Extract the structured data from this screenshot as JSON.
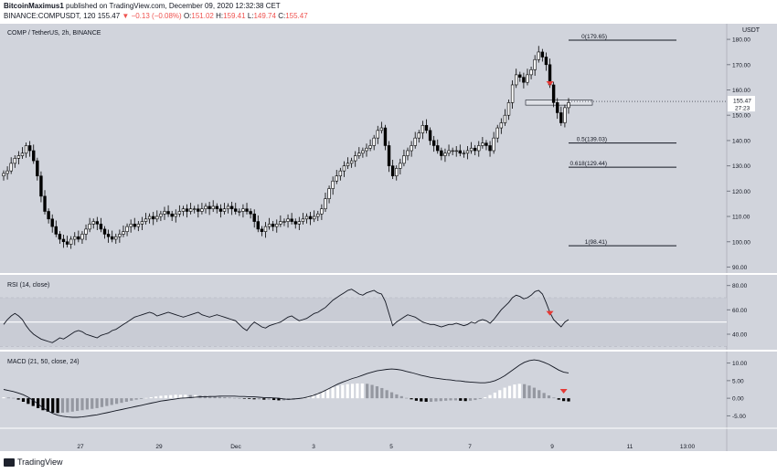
{
  "header": {
    "author": "BitcoinMaximus1",
    "published_text": "published on TradingView.com, December 09, 2020 12:32:38 CET",
    "symbol": "BINANCE:COMPUSDT, 120",
    "last": "155.47",
    "change": "−0.13 (−0.08%)",
    "o_label": "O:",
    "o_val": "151.02",
    "h_label": "H:",
    "h_val": "159.41",
    "l_label": "L:",
    "l_val": "149.74",
    "c_label": "C:",
    "c_val": "155.47"
  },
  "colors": {
    "background": "#d1d4dc",
    "panel_bg": "#ffffff",
    "up_candle": "#ffffff",
    "down_candle": "#000000",
    "accent_red": "#e53935"
  },
  "footer": {
    "brand": "TradingView"
  },
  "chart_data": [
    {
      "type": "candlestick",
      "title": "COMP / TetherUS, 2h, BINANCE",
      "currency_label": "USDT",
      "y_ticks": [
        "180.00",
        "170.00",
        "160.00",
        "150.00",
        "140.00",
        "130.00",
        "120.00",
        "110.00",
        "100.00",
        "90.00"
      ],
      "ylim": [
        88,
        184
      ],
      "last_price": "155.47",
      "countdown": "27:23",
      "x_ticks": [
        "27",
        "29",
        "Dec",
        "3",
        "5",
        "7",
        "9",
        "11",
        "13:00"
      ],
      "fib_levels": [
        {
          "label": "0(179.65)",
          "value": 179.65
        },
        {
          "label": "0.5(139.03)",
          "value": 139.03
        },
        {
          "label": "0.618(129.44)",
          "value": 129.44
        },
        {
          "label": "1(98.41)",
          "value": 98.41
        }
      ],
      "resistance_box": [
        154,
        156
      ],
      "signal_arrow": {
        "index": 146,
        "value": 162
      },
      "closes": [
        127,
        128,
        131,
        133,
        134,
        135,
        138,
        136,
        132,
        126,
        118,
        112,
        109,
        106,
        103,
        101,
        100,
        99,
        101,
        102,
        101,
        103,
        105,
        107,
        108,
        107,
        105,
        103,
        102,
        101,
        102,
        103,
        104,
        106,
        107,
        106,
        107,
        108,
        109,
        110,
        109,
        110,
        111,
        112,
        111,
        110,
        111,
        112,
        113,
        112,
        113,
        113,
        112,
        113,
        114,
        113,
        114,
        113,
        112,
        113,
        114,
        113,
        112,
        112,
        113,
        112,
        111,
        108,
        105,
        104,
        106,
        107,
        106,
        107,
        108,
        108,
        109,
        108,
        107,
        108,
        109,
        110,
        109,
        110,
        111,
        113,
        117,
        121,
        124,
        126,
        128,
        130,
        131,
        132,
        134,
        135,
        136,
        137,
        138,
        141,
        144,
        145,
        138,
        130,
        126,
        129,
        131,
        134,
        136,
        138,
        141,
        143,
        146,
        144,
        140,
        138,
        136,
        134,
        135,
        136,
        136,
        136,
        135,
        135,
        136,
        137,
        136,
        138,
        139,
        138,
        136,
        141,
        145,
        147,
        150,
        155,
        162,
        166,
        165,
        163,
        166,
        168,
        172,
        175,
        173,
        170,
        162,
        155,
        151,
        147,
        153,
        155
      ]
    },
    {
      "type": "line",
      "title": "RSI (14, close)",
      "y_ticks": [
        "80.00",
        "60.00",
        "40.00"
      ],
      "ylim": [
        28,
        88
      ],
      "band": [
        30,
        70
      ],
      "midline": 50,
      "signal_arrow": {
        "index": 146,
        "value": 56
      },
      "values": [
        48,
        52,
        55,
        57,
        55,
        52,
        47,
        43,
        40,
        38,
        36,
        35,
        34,
        33,
        35,
        37,
        36,
        38,
        40,
        42,
        43,
        42,
        40,
        39,
        38,
        37,
        39,
        40,
        41,
        43,
        44,
        46,
        48,
        50,
        52,
        54,
        55,
        56,
        57,
        58,
        57,
        55,
        56,
        57,
        58,
        57,
        56,
        55,
        54,
        55,
        56,
        57,
        58,
        56,
        55,
        54,
        55,
        56,
        55,
        54,
        53,
        52,
        51,
        48,
        45,
        43,
        47,
        50,
        48,
        46,
        45,
        47,
        48,
        49,
        50,
        52,
        54,
        55,
        53,
        51,
        52,
        53,
        55,
        57,
        58,
        60,
        62,
        65,
        68,
        70,
        72,
        74,
        76,
        77,
        75,
        73,
        72,
        74,
        75,
        76,
        74,
        73,
        67,
        57,
        47,
        50,
        52,
        54,
        56,
        55,
        54,
        52,
        50,
        49,
        48,
        48,
        47,
        46,
        47,
        48,
        48,
        49,
        48,
        47,
        48,
        50,
        49,
        51,
        52,
        51,
        49,
        52,
        56,
        60,
        63,
        66,
        70,
        72,
        71,
        69,
        70,
        72,
        75,
        76,
        73,
        66,
        58,
        52,
        49,
        46,
        50,
        52
      ]
    },
    {
      "type": "line",
      "title": "MACD (21, 50, close, 24)",
      "y_ticks": [
        "10.00",
        "5.00",
        "0.00",
        "-5.00"
      ],
      "ylim": [
        -8,
        13
      ],
      "macd": [
        2.5,
        2.2,
        1.9,
        1.5,
        1.0,
        0.3,
        -0.6,
        -1.6,
        -2.7,
        -3.6,
        -4.3,
        -4.8,
        -5.1,
        -5.3,
        -5.4,
        -5.4,
        -5.3,
        -5.1,
        -4.9,
        -4.7,
        -4.4,
        -4.1,
        -3.8,
        -3.5,
        -3.2,
        -2.9,
        -2.6,
        -2.3,
        -2.0,
        -1.7,
        -1.4,
        -1.1,
        -0.8,
        -0.6,
        -0.4,
        -0.2,
        0.0,
        0.1,
        0.2,
        0.3,
        0.4,
        0.4,
        0.5,
        0.5,
        0.6,
        0.6,
        0.6,
        0.6,
        0.5,
        0.5,
        0.4,
        0.4,
        0.3,
        0.2,
        0.2,
        0.1,
        0.0,
        -0.2,
        -0.3,
        -0.2,
        -0.1,
        0.1,
        0.4,
        0.8,
        1.3,
        1.9,
        2.6,
        3.3,
        4.0,
        4.6,
        5.1,
        5.6,
        6.0,
        6.5,
        7.0,
        7.4,
        7.8,
        8.0,
        8.2,
        8.3,
        8.2,
        8.0,
        7.6,
        7.3,
        6.9,
        6.5,
        6.2,
        5.9,
        5.7,
        5.5,
        5.3,
        5.2,
        5.0,
        4.9,
        4.7,
        4.6,
        4.5,
        4.4,
        4.4,
        4.6,
        5.0,
        5.6,
        6.4,
        7.4,
        8.4,
        9.4,
        10.2,
        10.7,
        10.9,
        10.7,
        10.2,
        9.6,
        8.8,
        8.0,
        7.4,
        7.2
      ],
      "histogram": [
        0.3,
        0.2,
        0.1,
        -0.4,
        -1.0,
        -1.6,
        -2.2,
        -2.8,
        -3.4,
        -3.8,
        -4.1,
        -4.2,
        -4.1,
        -4.0,
        -3.8,
        -3.6,
        -3.4,
        -3.2,
        -3.0,
        -2.8,
        -2.5,
        -2.2,
        -1.9,
        -1.6,
        -1.3,
        -1.0,
        -0.7,
        -0.4,
        -0.2,
        0.1,
        0.3,
        0.5,
        0.7,
        0.8,
        0.9,
        1.0,
        1.0,
        1.0,
        0.9,
        0.9,
        0.8,
        0.7,
        0.6,
        0.5,
        0.4,
        0.3,
        0.2,
        0.1,
        0.0,
        -0.1,
        -0.2,
        -0.3,
        -0.3,
        -0.4,
        -0.4,
        -0.5,
        -0.6,
        -0.6,
        -0.5,
        -0.4,
        -0.2,
        0.1,
        0.5,
        1.0,
        1.5,
        2.0,
        2.6,
        3.1,
        3.5,
        3.8,
        4.0,
        4.1,
        4.2,
        4.2,
        4.1,
        3.8,
        3.4,
        2.9,
        2.3,
        1.7,
        1.1,
        0.6,
        0.1,
        -0.3,
        -0.7,
        -0.9,
        -1.0,
        -1.0,
        -0.9,
        -0.8,
        -0.7,
        -0.6,
        -0.6,
        -0.7,
        -0.8,
        -0.7,
        -0.5,
        -0.2,
        0.3,
        0.9,
        1.6,
        2.3,
        3.0,
        3.5,
        3.9,
        4.1,
        4.0,
        3.6,
        3.0,
        2.3,
        1.5,
        0.8,
        0.2,
        -0.4,
        -0.8,
        -0.9
      ],
      "signal_arrow": {
        "index": 114,
        "value": 1.6
      }
    }
  ]
}
